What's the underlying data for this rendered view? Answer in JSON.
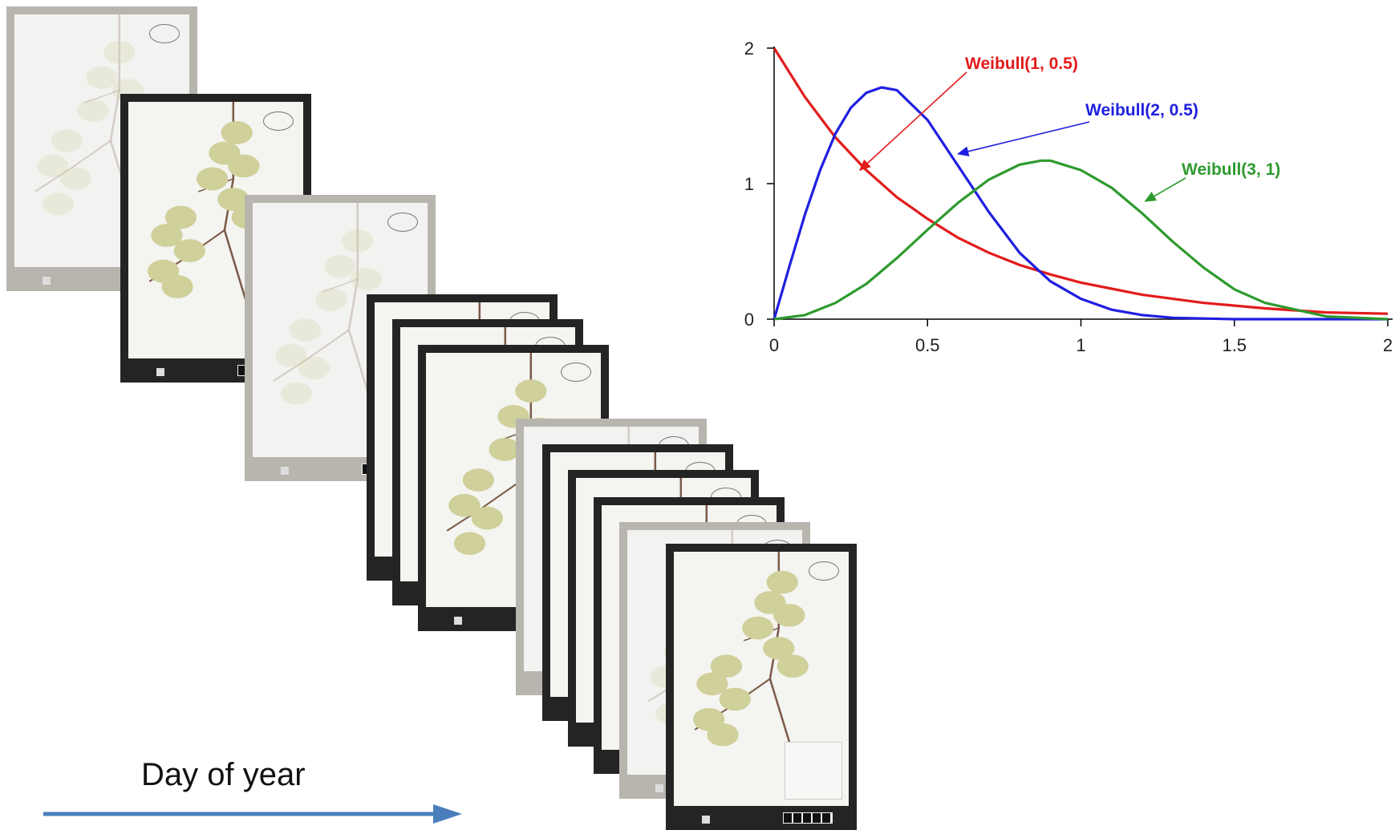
{
  "timeline": {
    "label": "Day of year",
    "arrow_color": "#4a7ebb"
  },
  "specimens": {
    "count": 12,
    "plant_color": "#cfd09a",
    "stem_color": "#7a5a48"
  },
  "chart_data": {
    "type": "line",
    "title": "",
    "xlabel": "",
    "ylabel": "",
    "xlim": [
      0,
      2
    ],
    "ylim": [
      0,
      2
    ],
    "x_ticks": [
      "0",
      "0.5",
      "1",
      "1.5",
      "2"
    ],
    "y_ticks": [
      "0",
      "1",
      "2"
    ],
    "grid": false,
    "legend": "annotations",
    "series": [
      {
        "name": "Weibull(1, 0.5)",
        "color": "#e21b1b",
        "x": [
          0,
          0.1,
          0.2,
          0.3,
          0.4,
          0.5,
          0.6,
          0.7,
          0.8,
          0.9,
          1.0,
          1.2,
          1.4,
          1.6,
          1.8,
          2.0
        ],
        "y": [
          2.0,
          1.64,
          1.34,
          1.1,
          0.9,
          0.74,
          0.6,
          0.49,
          0.4,
          0.33,
          0.27,
          0.18,
          0.12,
          0.08,
          0.05,
          0.04
        ]
      },
      {
        "name": "Weibull(2, 0.5)",
        "color": "#1f1fe0",
        "x": [
          0,
          0.05,
          0.1,
          0.15,
          0.2,
          0.25,
          0.3,
          0.35,
          0.4,
          0.5,
          0.6,
          0.7,
          0.8,
          0.9,
          1.0,
          1.1,
          1.2,
          1.3,
          1.5,
          2.0
        ],
        "y": [
          0,
          0.39,
          0.77,
          1.1,
          1.37,
          1.56,
          1.67,
          1.71,
          1.69,
          1.47,
          1.13,
          0.79,
          0.49,
          0.28,
          0.15,
          0.07,
          0.03,
          0.01,
          0,
          0
        ]
      },
      {
        "name": "Weibull(3, 1)",
        "color": "#2e9a2e",
        "x": [
          0,
          0.1,
          0.2,
          0.3,
          0.4,
          0.5,
          0.6,
          0.7,
          0.8,
          0.87,
          0.9,
          1.0,
          1.1,
          1.2,
          1.3,
          1.4,
          1.5,
          1.6,
          1.8,
          2.0
        ],
        "y": [
          0,
          0.03,
          0.12,
          0.26,
          0.45,
          0.66,
          0.86,
          1.03,
          1.14,
          1.17,
          1.17,
          1.1,
          0.97,
          0.78,
          0.57,
          0.38,
          0.22,
          0.12,
          0.02,
          0
        ]
      }
    ]
  }
}
